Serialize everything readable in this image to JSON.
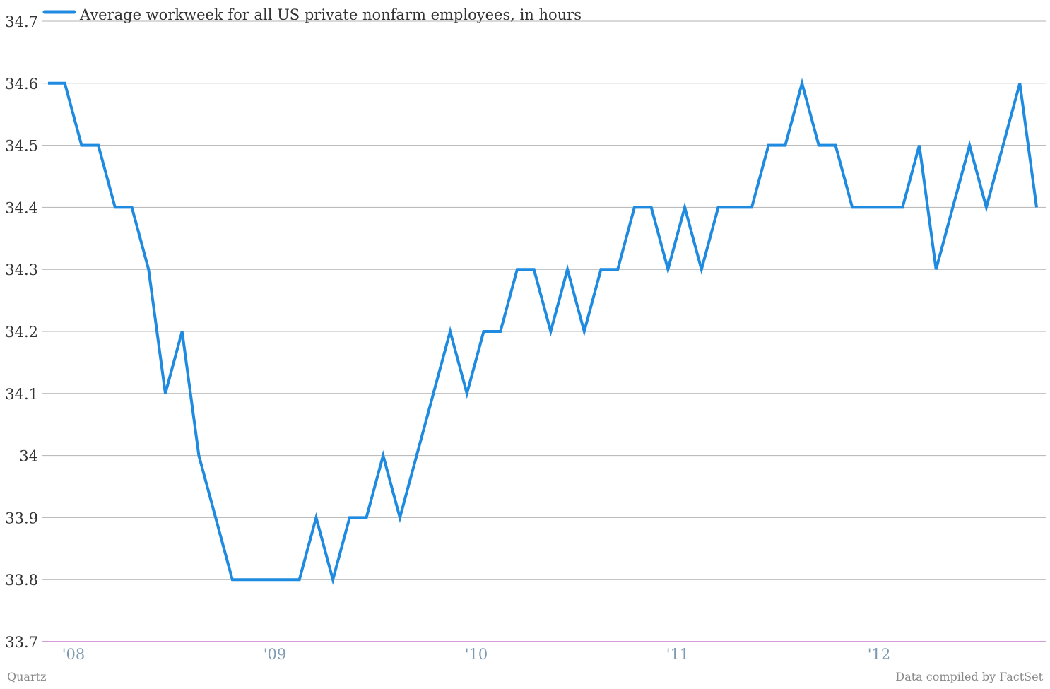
{
  "chart_data": {
    "type": "line",
    "title": "",
    "xlabel": "",
    "ylabel": "",
    "ylim": [
      33.7,
      34.7
    ],
    "yticks": [
      33.7,
      33.8,
      33.9,
      34,
      34.1,
      34.2,
      34.3,
      34.4,
      34.5,
      34.6,
      34.7
    ],
    "ytick_labels": [
      "33.7",
      "33.8",
      "33.9",
      "34",
      "34.1",
      "34.2",
      "34.3",
      "34.4",
      "34.5",
      "34.6",
      "34.7"
    ],
    "x_start": "Nov 2007",
    "x_end": "Oct 2012",
    "x_frequency": "monthly",
    "xtick_labels": [
      "'08",
      "'09",
      "'10",
      "'11",
      "'12"
    ],
    "grid": true,
    "legend_position": "top-left",
    "series": [
      {
        "name": "Average workweek for all US private nonfarm employees, in hours",
        "color": "#1f8be0",
        "values": [
          34.6,
          34.6,
          34.5,
          34.5,
          34.4,
          34.4,
          34.3,
          34.1,
          34.2,
          34.0,
          33.9,
          33.8,
          33.8,
          33.8,
          33.8,
          33.8,
          33.9,
          33.8,
          33.9,
          33.9,
          34.0,
          33.9,
          34.0,
          34.1,
          34.2,
          34.1,
          34.2,
          34.2,
          34.3,
          34.3,
          34.2,
          34.3,
          34.2,
          34.3,
          34.3,
          34.4,
          34.4,
          34.3,
          34.4,
          34.3,
          34.4,
          34.4,
          34.4,
          34.5,
          34.5,
          34.6,
          34.5,
          34.5,
          34.4,
          34.4,
          34.4,
          34.4,
          34.5,
          34.3,
          34.4,
          34.5,
          34.4,
          34.5,
          34.6,
          34.4
        ]
      }
    ]
  },
  "footer": {
    "source_left": "Quartz",
    "source_right": "Data compiled by FactSet"
  },
  "colors": {
    "grid": "#b3b3b3",
    "baseline": "#c060c0",
    "xtick": "#7f9ab3"
  }
}
